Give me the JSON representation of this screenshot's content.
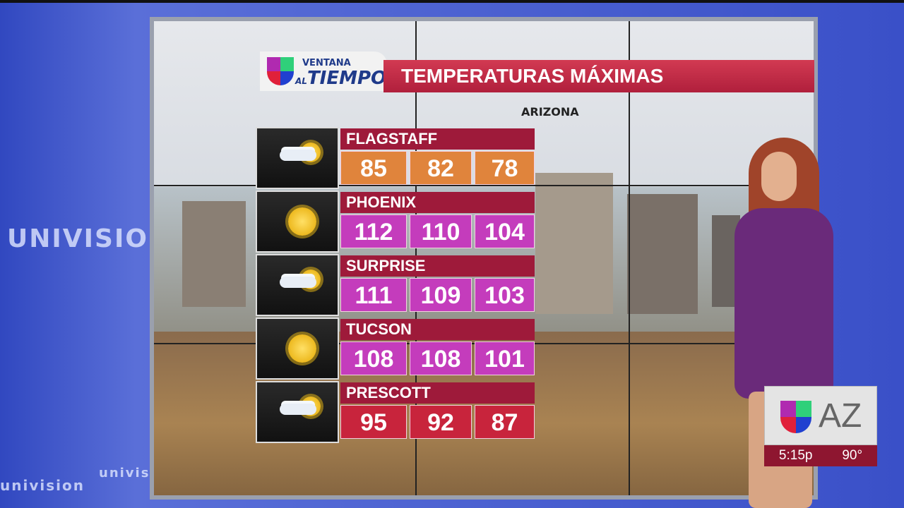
{
  "show": {
    "logo_line1": "VENTANA",
    "logo_line2_prefix": "AL",
    "logo_line2": "TIEMPO"
  },
  "graphic": {
    "title": "TEMPERATURAS MÁXIMAS",
    "subtitle": "ARIZONA"
  },
  "rows": [
    {
      "city": "FLAGSTAFF",
      "icon": "partly-cloudy-icon",
      "temps": [
        "85",
        "82",
        "78"
      ],
      "color": "#e0843c"
    },
    {
      "city": "PHOENIX",
      "icon": "sun-icon",
      "temps": [
        "112",
        "110",
        "104"
      ],
      "color": "#c43cbc"
    },
    {
      "city": "SURPRISE",
      "icon": "partly-cloudy-icon",
      "temps": [
        "111",
        "109",
        "103"
      ],
      "color": "#c43cbc"
    },
    {
      "city": "TUCSON",
      "icon": "sun-icon",
      "temps": [
        "108",
        "108",
        "101"
      ],
      "color": "#c43cbc"
    },
    {
      "city": "PRESCOTT",
      "icon": "partly-cloudy-icon",
      "temps": [
        "95",
        "92",
        "87"
      ],
      "color": "#c8243c"
    }
  ],
  "bug": {
    "station": "AZ",
    "time": "5:15p",
    "temp": "90°"
  },
  "wall": {
    "brand": "UNIVISION",
    "brand_small": "univision"
  }
}
